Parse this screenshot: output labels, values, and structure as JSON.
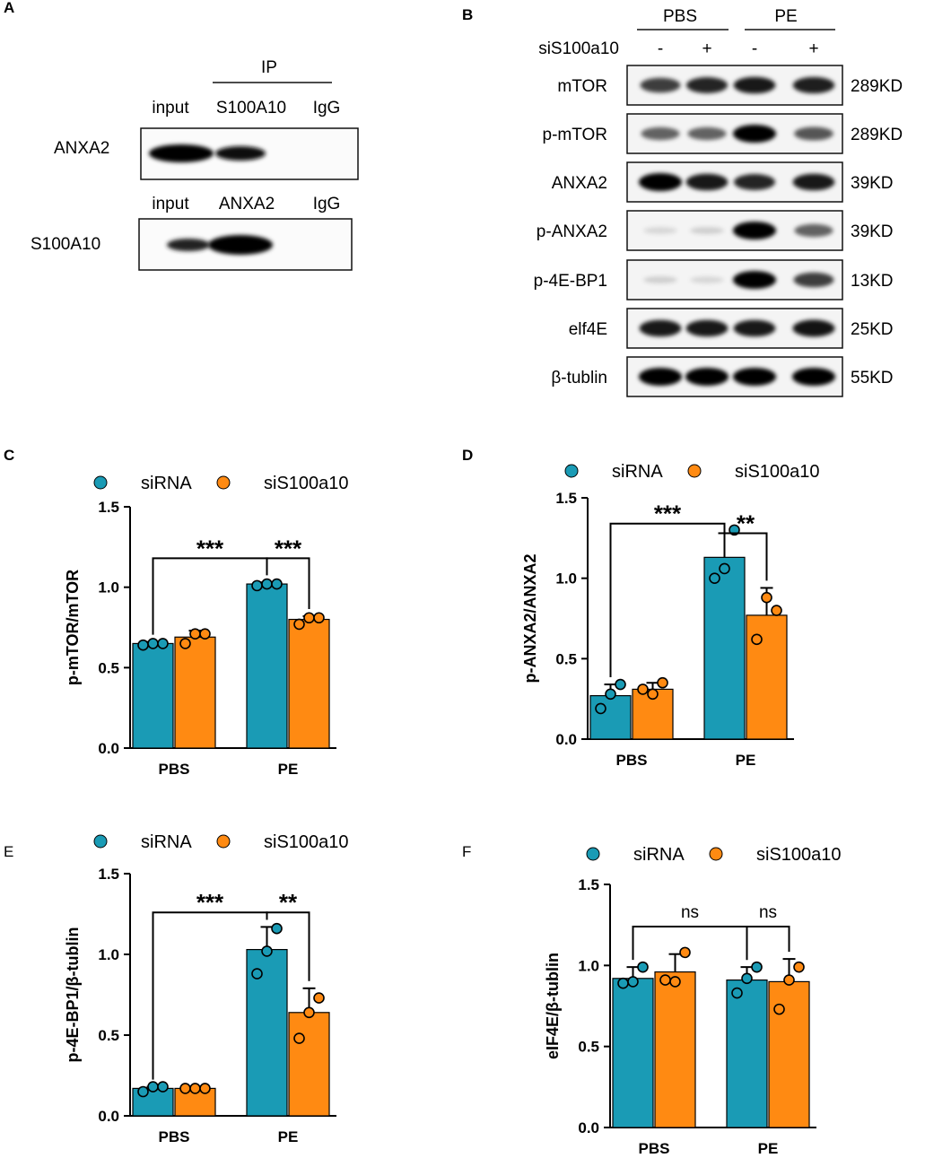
{
  "panel_labels": [
    "A",
    "B",
    "C",
    "D",
    "E",
    "F"
  ],
  "panel_a": {
    "ip_header": "IP",
    "blot1": {
      "lanes": [
        "input",
        "S100A10",
        "IgG"
      ],
      "protein": "ANXA2"
    },
    "blot2": {
      "lanes": [
        "input",
        "ANXA2",
        "IgG"
      ],
      "protein": "S100A10"
    }
  },
  "panel_b": {
    "groups": [
      "PBS",
      "PE"
    ],
    "treatment_label": "siS100a10",
    "lane_signs": [
      "-",
      "+",
      "-",
      "+"
    ],
    "blots": [
      {
        "protein": "mTOR",
        "size": "289KD",
        "bands": [
          0.75,
          0.85,
          0.9,
          0.88
        ]
      },
      {
        "protein": "p-mTOR",
        "size": "289KD",
        "bands": [
          0.6,
          0.6,
          1.0,
          0.65
        ]
      },
      {
        "protein": "ANXA2",
        "size": "39KD",
        "bands": [
          1.0,
          0.9,
          0.85,
          0.9
        ]
      },
      {
        "protein": "p-ANXA2",
        "size": "39KD",
        "bands": [
          0.12,
          0.15,
          1.0,
          0.6
        ]
      },
      {
        "protein": "p-4E-BP1",
        "size": "13KD",
        "bands": [
          0.15,
          0.12,
          1.0,
          0.75
        ]
      },
      {
        "protein": "elf4E",
        "size": "25KD",
        "bands": [
          0.9,
          0.9,
          0.9,
          0.92
        ]
      },
      {
        "protein": "β-tublin",
        "size": "55KD",
        "bands": [
          1.0,
          1.0,
          1.0,
          1.0
        ]
      }
    ]
  },
  "colors": {
    "siRNA": "#1a9bb5",
    "siS100a10": "#ff8a12"
  },
  "chart_data": [
    {
      "panel": "C",
      "type": "bar",
      "categories": [
        "PBS",
        "PE"
      ],
      "ylabel": "p-mTOR/mTOR",
      "ylim": [
        0,
        1.5
      ],
      "yticks": [
        "0.0",
        "0.5",
        "1.0",
        "1.5"
      ],
      "legend": "top",
      "series": [
        {
          "name": "siRNA",
          "values": [
            0.65,
            1.02
          ],
          "sd": [
            0.01,
            0.01
          ],
          "points": [
            [
              0.64,
              0.65,
              0.65
            ],
            [
              1.01,
              1.02,
              1.02
            ]
          ]
        },
        {
          "name": "siS100a10",
          "values": [
            0.69,
            0.8
          ],
          "sd": [
            0.04,
            0.02
          ],
          "points": [
            [
              0.65,
              0.71,
              0.71
            ],
            [
              0.77,
              0.81,
              0.81
            ]
          ]
        }
      ],
      "brackets": [
        {
          "from": [
            0,
            0
          ],
          "to": [
            1,
            0
          ],
          "label": "***"
        },
        {
          "from": [
            1,
            0
          ],
          "to": [
            1,
            1
          ],
          "label": "***"
        }
      ]
    },
    {
      "panel": "D",
      "type": "bar",
      "categories": [
        "PBS",
        "PE"
      ],
      "ylabel": "p-ANXA2/ANXA2",
      "ylim": [
        0,
        1.5
      ],
      "yticks": [
        "0.0",
        "0.5",
        "1.0",
        "1.5"
      ],
      "legend": "top",
      "series": [
        {
          "name": "siRNA",
          "values": [
            0.27,
            1.13
          ],
          "sd": [
            0.07,
            0.15
          ],
          "points": [
            [
              0.19,
              0.28,
              0.34
            ],
            [
              1.0,
              1.06,
              1.3
            ]
          ]
        },
        {
          "name": "siS100a10",
          "values": [
            0.31,
            0.77
          ],
          "sd": [
            0.04,
            0.17
          ],
          "points": [
            [
              0.31,
              0.28,
              0.35
            ],
            [
              0.62,
              0.88,
              0.8
            ]
          ]
        }
      ],
      "brackets": [
        {
          "from": [
            0,
            0
          ],
          "to": [
            1,
            0
          ],
          "label": "***"
        },
        {
          "from": [
            1,
            0
          ],
          "to": [
            1,
            1
          ],
          "label": "**"
        }
      ]
    },
    {
      "panel": "E",
      "type": "bar",
      "categories": [
        "PBS",
        "PE"
      ],
      "ylabel": "p-4E-BP1/β-tublin",
      "ylim": [
        0,
        1.5
      ],
      "yticks": [
        "0.0",
        "0.5",
        "1.0",
        "1.5"
      ],
      "legend": "top",
      "series": [
        {
          "name": "siRNA",
          "values": [
            0.17,
            1.03
          ],
          "sd": [
            0.01,
            0.14
          ],
          "points": [
            [
              0.15,
              0.18,
              0.18
            ],
            [
              0.88,
              1.02,
              1.16
            ]
          ]
        },
        {
          "name": "siS100a10",
          "values": [
            0.17,
            0.64
          ],
          "sd": [
            0.01,
            0.15
          ],
          "points": [
            [
              0.17,
              0.17,
              0.17
            ],
            [
              0.48,
              0.64,
              0.73
            ]
          ]
        }
      ],
      "brackets": [
        {
          "from": [
            0,
            0
          ],
          "to": [
            1,
            0
          ],
          "label": "***"
        },
        {
          "from": [
            1,
            0
          ],
          "to": [
            1,
            1
          ],
          "label": "**"
        }
      ]
    },
    {
      "panel": "F",
      "type": "bar",
      "categories": [
        "PBS",
        "PE"
      ],
      "ylabel": "eIF4E/β-tublin",
      "ylim": [
        0,
        1.5
      ],
      "yticks": [
        "0.0",
        "0.5",
        "1.0",
        "1.5"
      ],
      "legend": "top",
      "series": [
        {
          "name": "siRNA",
          "values": [
            0.92,
            0.91
          ],
          "sd": [
            0.07,
            0.08
          ],
          "points": [
            [
              0.89,
              0.9,
              0.99
            ],
            [
              0.83,
              0.92,
              0.99
            ]
          ]
        },
        {
          "name": "siS100a10",
          "values": [
            0.96,
            0.9
          ],
          "sd": [
            0.11,
            0.14
          ],
          "points": [
            [
              0.91,
              0.9,
              1.08
            ],
            [
              0.73,
              0.91,
              0.99
            ]
          ]
        }
      ],
      "brackets": [
        {
          "from": [
            0,
            0
          ],
          "to": [
            1,
            0
          ],
          "label": "ns"
        },
        {
          "from": [
            1,
            0
          ],
          "to": [
            1,
            1
          ],
          "label": "ns"
        }
      ]
    }
  ]
}
